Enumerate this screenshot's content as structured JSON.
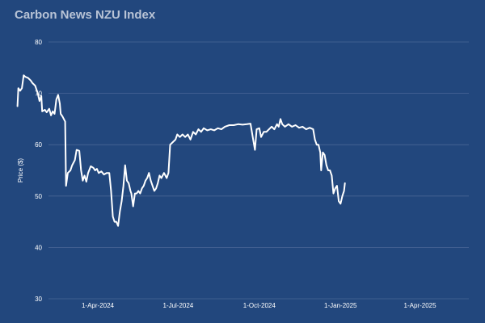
{
  "chart_data": {
    "type": "line",
    "title": "Carbon News NZU Index",
    "xlabel": "",
    "ylabel": "Price ($)",
    "ylim": [
      30,
      80
    ],
    "yticks": [
      30,
      40,
      50,
      60,
      70,
      80
    ],
    "xlim": [
      "2024-01-01",
      "2025-05-31"
    ],
    "xticks": [
      {
        "date": "2024-04-01",
        "label": "1-Apr-2024"
      },
      {
        "date": "2024-07-01",
        "label": "1-Jul-2024"
      },
      {
        "date": "2024-10-01",
        "label": "1-Oct-2024"
      },
      {
        "date": "2025-01-01",
        "label": "1-Jan-2025"
      },
      {
        "date": "2025-04-01",
        "label": "1-Apr-2025"
      }
    ],
    "grid": "horizontal",
    "legend": "none",
    "colors": {
      "background": "#22477d",
      "line": "#ffffff",
      "grid": "#4a6796",
      "title": "#b9c4d6"
    },
    "series": [
      {
        "values": [
          [
            "2024-01-01",
            67.5
          ],
          [
            "2024-01-02",
            71
          ],
          [
            "2024-01-04",
            70.5
          ],
          [
            "2024-01-06",
            71
          ],
          [
            "2024-01-08",
            73.5
          ],
          [
            "2024-01-10",
            73.2
          ],
          [
            "2024-01-13",
            73
          ],
          [
            "2024-01-16",
            72.5
          ],
          [
            "2024-01-18",
            72
          ],
          [
            "2024-01-21",
            71.5
          ],
          [
            "2024-01-24",
            70
          ],
          [
            "2024-01-26",
            68.5
          ],
          [
            "2024-01-28",
            69.5
          ],
          [
            "2024-01-29",
            66.5
          ],
          [
            "2024-02-01",
            66.8
          ],
          [
            "2024-02-03",
            66.3
          ],
          [
            "2024-02-06",
            67
          ],
          [
            "2024-02-08",
            65.7
          ],
          [
            "2024-02-10",
            66.5
          ],
          [
            "2024-02-12",
            66
          ],
          [
            "2024-02-14",
            68.8
          ],
          [
            "2024-02-16",
            69.7
          ],
          [
            "2024-02-18",
            68
          ],
          [
            "2024-02-19",
            66
          ],
          [
            "2024-02-21",
            65.5
          ],
          [
            "2024-02-24",
            64.5
          ],
          [
            "2024-02-25",
            52
          ],
          [
            "2024-02-27",
            54.5
          ],
          [
            "2024-03-01",
            55
          ],
          [
            "2024-03-03",
            56
          ],
          [
            "2024-03-06",
            57
          ],
          [
            "2024-03-08",
            59
          ],
          [
            "2024-03-11",
            58.8
          ],
          [
            "2024-03-13",
            55
          ],
          [
            "2024-03-15",
            53
          ],
          [
            "2024-03-17",
            54
          ],
          [
            "2024-03-19",
            52.8
          ],
          [
            "2024-03-21",
            54.5
          ],
          [
            "2024-03-24",
            55.8
          ],
          [
            "2024-03-27",
            55.5
          ],
          [
            "2024-03-29",
            55
          ],
          [
            "2024-03-31",
            55.3
          ],
          [
            "2024-04-02",
            54.5
          ],
          [
            "2024-04-05",
            54.8
          ],
          [
            "2024-04-08",
            54.2
          ],
          [
            "2024-04-11",
            54.5
          ],
          [
            "2024-04-14",
            54.5
          ],
          [
            "2024-04-16",
            51
          ],
          [
            "2024-04-18",
            46
          ],
          [
            "2024-04-20",
            45
          ],
          [
            "2024-04-22",
            45
          ],
          [
            "2024-04-24",
            44.2
          ],
          [
            "2024-04-26",
            47
          ],
          [
            "2024-04-28",
            49
          ],
          [
            "2024-04-30",
            52
          ],
          [
            "2024-05-02",
            56
          ],
          [
            "2024-05-04",
            53
          ],
          [
            "2024-05-06",
            52.5
          ],
          [
            "2024-05-08",
            51
          ],
          [
            "2024-05-09",
            50.5
          ],
          [
            "2024-05-11",
            48
          ],
          [
            "2024-05-13",
            50.5
          ],
          [
            "2024-05-15",
            50.5
          ],
          [
            "2024-05-17",
            51
          ],
          [
            "2024-05-19",
            50.5
          ],
          [
            "2024-05-21",
            51.5
          ],
          [
            "2024-05-23",
            52
          ],
          [
            "2024-05-25",
            53
          ],
          [
            "2024-05-27",
            53.5
          ],
          [
            "2024-05-29",
            54.5
          ],
          [
            "2024-05-31",
            53
          ],
          [
            "2024-06-02",
            52
          ],
          [
            "2024-06-04",
            51
          ],
          [
            "2024-06-06",
            51.5
          ],
          [
            "2024-06-08",
            52.5
          ],
          [
            "2024-06-10",
            54
          ],
          [
            "2024-06-12",
            53.5
          ],
          [
            "2024-06-15",
            54.5
          ],
          [
            "2024-06-18",
            53.5
          ],
          [
            "2024-06-20",
            54.5
          ],
          [
            "2024-06-22",
            60
          ],
          [
            "2024-06-25",
            60.5
          ],
          [
            "2024-06-28",
            61
          ],
          [
            "2024-06-30",
            62
          ],
          [
            "2024-07-03",
            61.5
          ],
          [
            "2024-07-06",
            62
          ],
          [
            "2024-07-09",
            61.5
          ],
          [
            "2024-07-12",
            62
          ],
          [
            "2024-07-15",
            61
          ],
          [
            "2024-07-18",
            62.5
          ],
          [
            "2024-07-21",
            62
          ],
          [
            "2024-07-24",
            63
          ],
          [
            "2024-07-27",
            62.5
          ],
          [
            "2024-07-30",
            63.2
          ],
          [
            "2024-08-03",
            62.8
          ],
          [
            "2024-08-07",
            63
          ],
          [
            "2024-08-11",
            62.8
          ],
          [
            "2024-08-15",
            63.2
          ],
          [
            "2024-08-19",
            63
          ],
          [
            "2024-08-23",
            63.5
          ],
          [
            "2024-08-28",
            63.8
          ],
          [
            "2024-09-02",
            63.8
          ],
          [
            "2024-09-07",
            64
          ],
          [
            "2024-09-12",
            63.9
          ],
          [
            "2024-09-17",
            64
          ],
          [
            "2024-09-21",
            64.1
          ],
          [
            "2024-09-24",
            61
          ],
          [
            "2024-09-26",
            59
          ],
          [
            "2024-09-28",
            63
          ],
          [
            "2024-10-01",
            63.2
          ],
          [
            "2024-10-03",
            61.5
          ],
          [
            "2024-10-06",
            62.5
          ],
          [
            "2024-10-09",
            62.5
          ],
          [
            "2024-10-12",
            63
          ],
          [
            "2024-10-15",
            63.5
          ],
          [
            "2024-10-18",
            63
          ],
          [
            "2024-10-21",
            64
          ],
          [
            "2024-10-23",
            63.5
          ],
          [
            "2024-10-25",
            65
          ],
          [
            "2024-10-27",
            64
          ],
          [
            "2024-10-30",
            63.5
          ],
          [
            "2024-11-03",
            64
          ],
          [
            "2024-11-07",
            63.5
          ],
          [
            "2024-11-11",
            63.8
          ],
          [
            "2024-11-15",
            63.3
          ],
          [
            "2024-11-19",
            63.5
          ],
          [
            "2024-11-23",
            63
          ],
          [
            "2024-11-27",
            63.3
          ],
          [
            "2024-12-01",
            63
          ],
          [
            "2024-12-03",
            61
          ],
          [
            "2024-12-05",
            60
          ],
          [
            "2024-12-07",
            60
          ],
          [
            "2024-12-09",
            58.5
          ],
          [
            "2024-12-10",
            55
          ],
          [
            "2024-12-12",
            58.5
          ],
          [
            "2024-12-14",
            58
          ],
          [
            "2024-12-16",
            56
          ],
          [
            "2024-12-18",
            55
          ],
          [
            "2024-12-20",
            55
          ],
          [
            "2024-12-22",
            54
          ],
          [
            "2024-12-24",
            50.5
          ],
          [
            "2024-12-26",
            51.5
          ],
          [
            "2024-12-28",
            52
          ],
          [
            "2024-12-30",
            49
          ],
          [
            "2025-01-01",
            48.5
          ],
          [
            "2025-01-03",
            50
          ],
          [
            "2025-01-05",
            51
          ],
          [
            "2025-01-06",
            52.5
          ]
        ]
      }
    ]
  }
}
